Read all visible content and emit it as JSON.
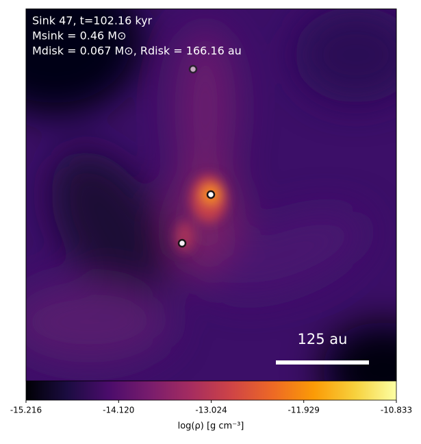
{
  "chart_data": {
    "type": "heatmap",
    "annotations": [
      "Sink 47, t=102.16 kyr",
      "Msink = 0.46 M⊙",
      "Mdisk = 0.067 M⊙, Rdisk = 166.16 au"
    ],
    "scale_bar_label": "125 au",
    "colormap": "inferno",
    "colorbar": {
      "clim": [
        -15.216,
        -10.833
      ],
      "ticks": [
        -15.216,
        {
          "value": -14.12,
          "label": "-14.120"
        },
        -13.024,
        -11.929,
        -10.833
      ],
      "label": "log(ρ) [g cm⁻³]"
    }
  }
}
